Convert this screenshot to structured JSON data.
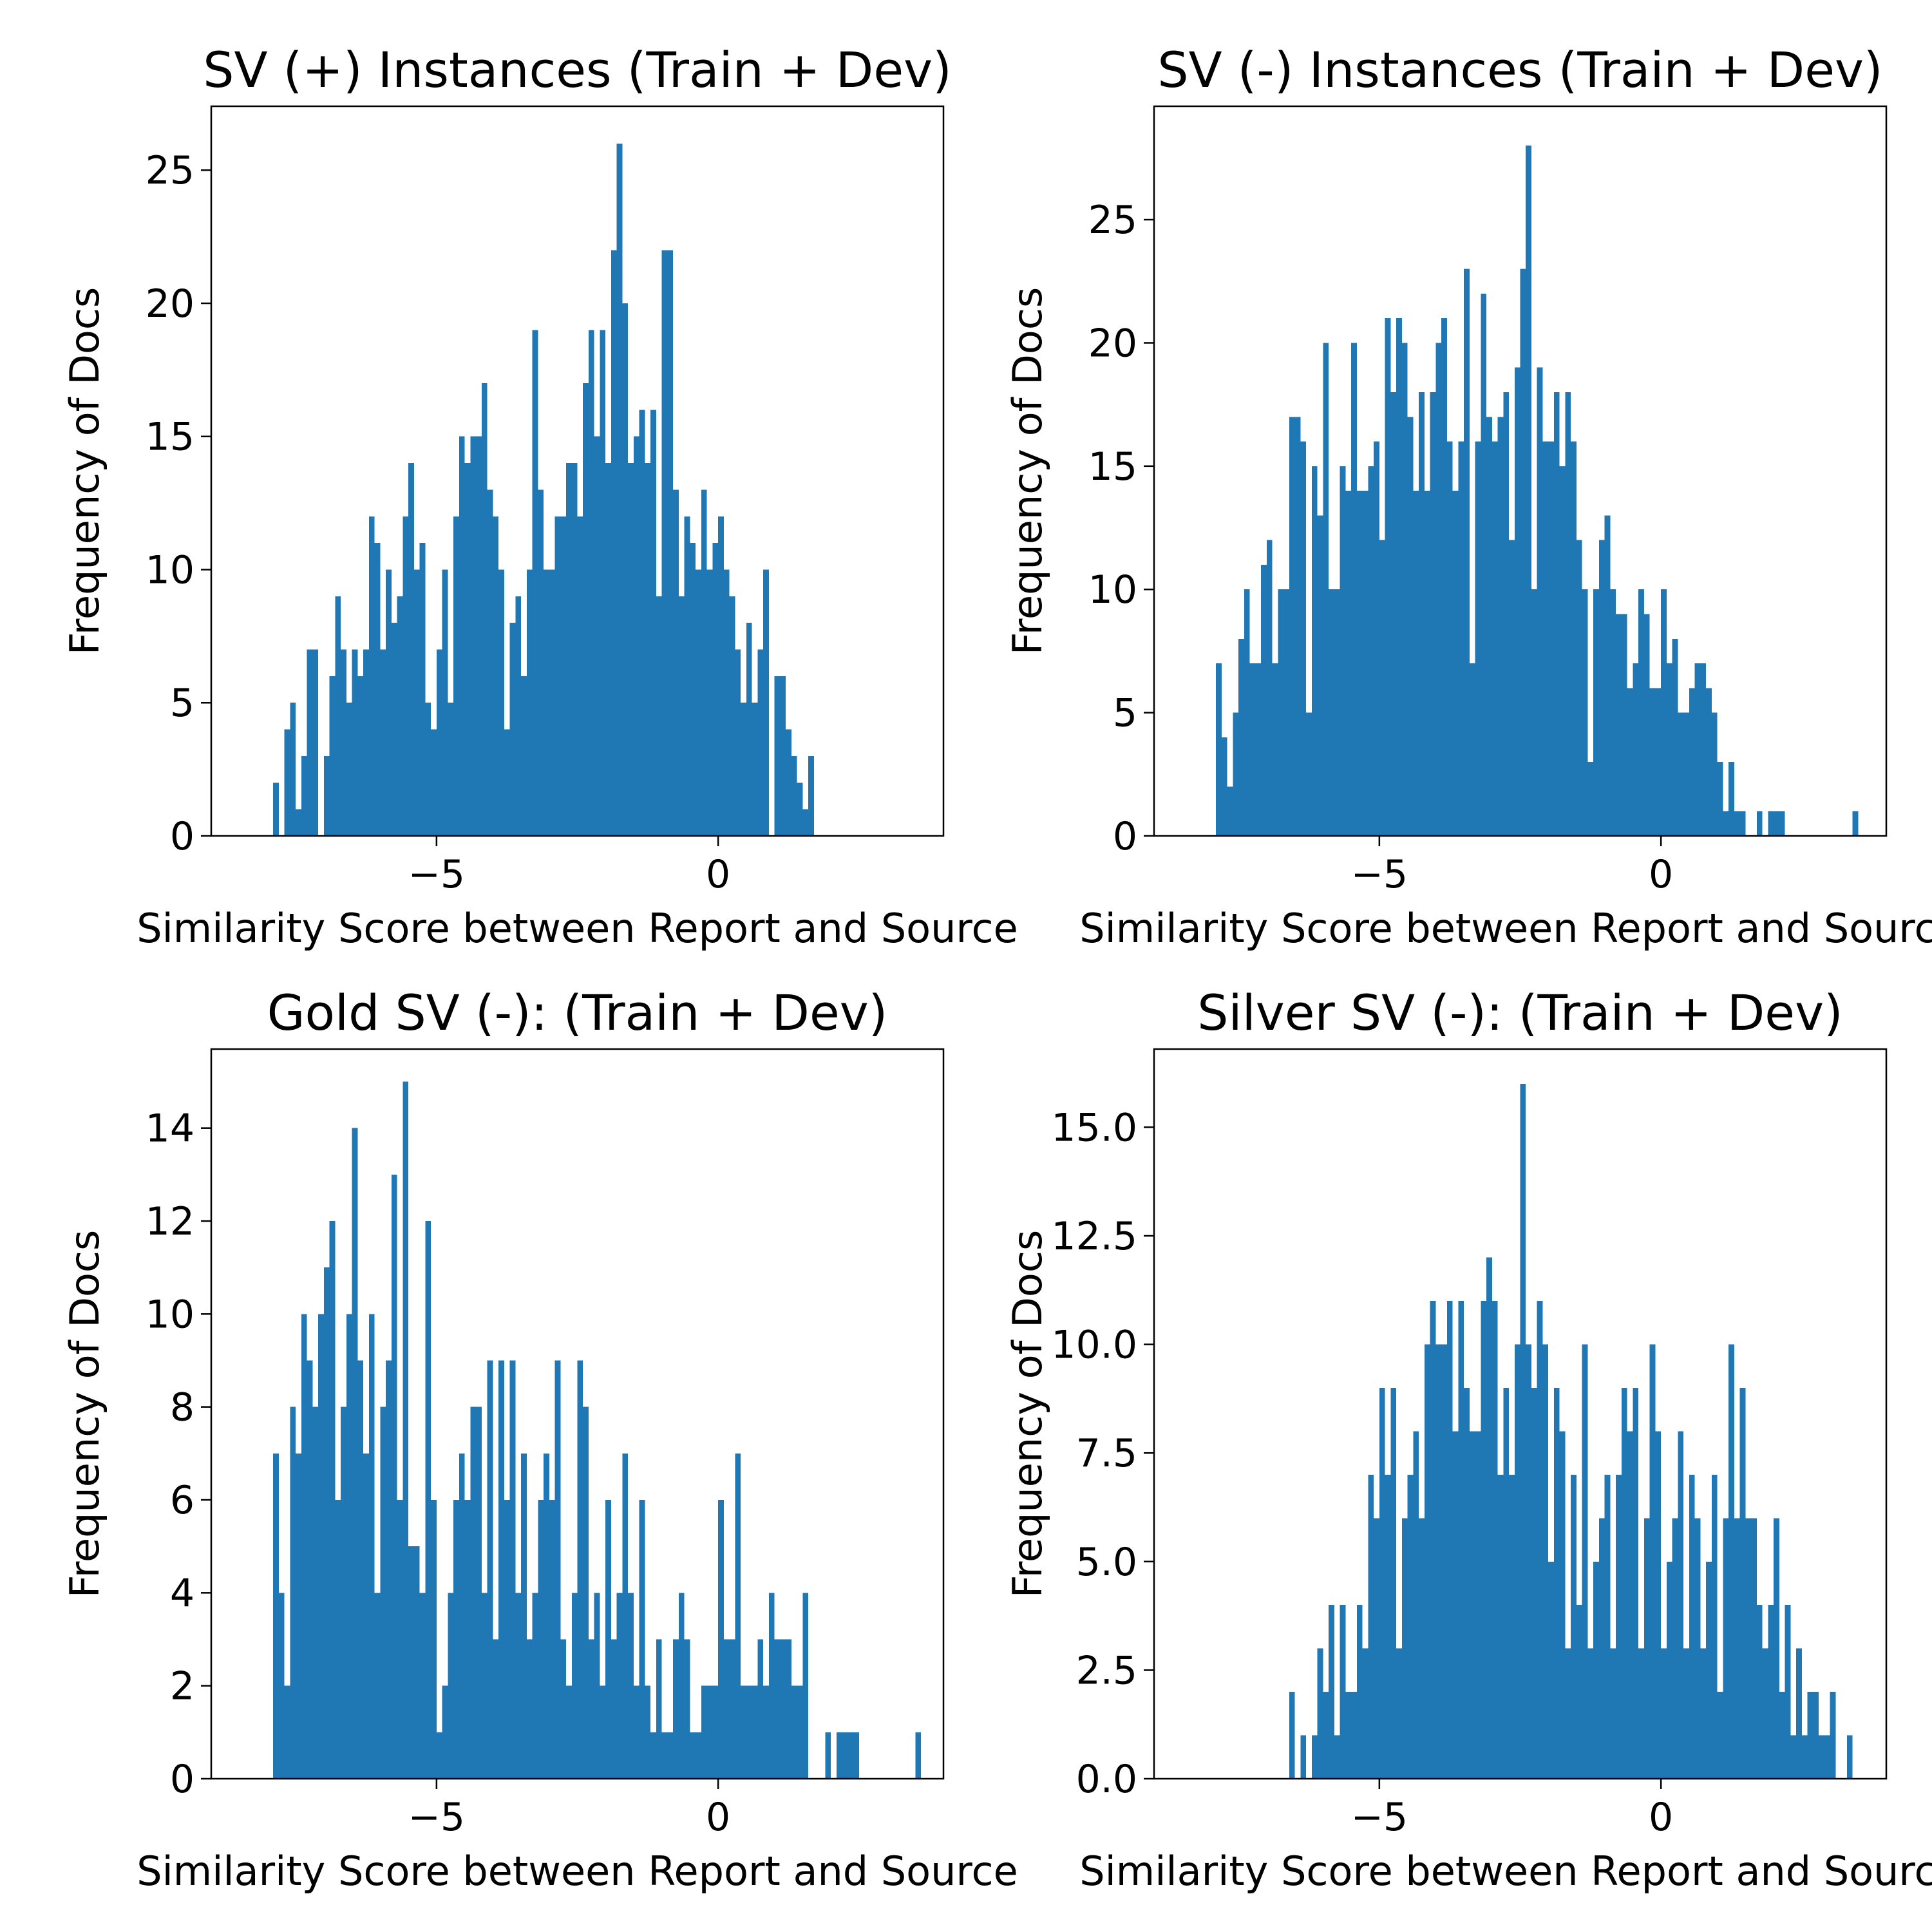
{
  "figure": {
    "bar_color": "#1f77b4",
    "axis_color": "#000000",
    "background": "#ffffff"
  },
  "chart_data": [
    {
      "type": "bar",
      "title": "SV (+) Instances (Train + Dev)",
      "xlabel": "Similarity Score between Report and Source",
      "ylabel": "Frequency of Docs",
      "xlim": [
        -9.0,
        4.0
      ],
      "ylim": [
        0,
        27.4
      ],
      "xticks": [
        -5,
        0
      ],
      "yticks": [
        0,
        5,
        10,
        15,
        20,
        25
      ],
      "ytick_labels": [
        "0",
        "5",
        "10",
        "15",
        "20",
        "25"
      ],
      "bin_start": -7.9,
      "bin_width": 0.1,
      "values": [
        2,
        0,
        4,
        5,
        1,
        3,
        7,
        7,
        0,
        3,
        6,
        9,
        7,
        5,
        7,
        6,
        7,
        12,
        11,
        7,
        10,
        8,
        9,
        12,
        14,
        10,
        11,
        5,
        4,
        7,
        10,
        5,
        12,
        15,
        14,
        15,
        15,
        17,
        13,
        12,
        10,
        4,
        8,
        9,
        6,
        10,
        19,
        13,
        10,
        10,
        12,
        12,
        14,
        14,
        12,
        17,
        19,
        15,
        19,
        14,
        22,
        26,
        20,
        14,
        15,
        16,
        14,
        16,
        9,
        22,
        22,
        13,
        9,
        12,
        11,
        10,
        13,
        10,
        11,
        12,
        10,
        9,
        7,
        5,
        8,
        5,
        7,
        10,
        0,
        6,
        6,
        4,
        3,
        2,
        1,
        3
      ]
    },
    {
      "type": "bar",
      "title": "SV (-) Instances (Train + Dev)",
      "xlabel": "Similarity Score between Report and Source",
      "ylabel": "Frequency of Docs",
      "xlim": [
        -9.0,
        4.0
      ],
      "ylim": [
        0,
        29.6
      ],
      "xticks": [
        -5,
        0
      ],
      "yticks": [
        0,
        5,
        10,
        15,
        20,
        25
      ],
      "ytick_labels": [
        "0",
        "5",
        "10",
        "15",
        "20",
        "25"
      ],
      "bin_start": -7.9,
      "bin_width": 0.1,
      "values": [
        7,
        4,
        2,
        5,
        8,
        10,
        7,
        7,
        11,
        12,
        7,
        10,
        10,
        17,
        17,
        16,
        5,
        15,
        13,
        20,
        10,
        10,
        15,
        14,
        20,
        14,
        14,
        15,
        16,
        12,
        21,
        18,
        21,
        20,
        17,
        14,
        18,
        14,
        18,
        20,
        21,
        16,
        14,
        16,
        23,
        7,
        16,
        22,
        17,
        16,
        17,
        18,
        12,
        19,
        23,
        28,
        10,
        19,
        16,
        16,
        18,
        15,
        18,
        16,
        12,
        10,
        3,
        10,
        12,
        13,
        10,
        9,
        9,
        6,
        7,
        10,
        9,
        6,
        6,
        10,
        7,
        8,
        5,
        5,
        6,
        7,
        7,
        6,
        5,
        3,
        1,
        3,
        1,
        1,
        0,
        0,
        1,
        0,
        1,
        1,
        1,
        0,
        0,
        0,
        0,
        0,
        0,
        0,
        0,
        0,
        0,
        0,
        0,
        1
      ]
    },
    {
      "type": "bar",
      "title": "Gold SV (-): (Train + Dev)",
      "xlabel": "Similarity Score between Report and Source",
      "ylabel": "Frequency of Docs",
      "xlim": [
        -9.0,
        4.0
      ],
      "ylim": [
        0,
        15.7
      ],
      "xticks": [
        -5,
        0
      ],
      "yticks": [
        0,
        2,
        4,
        6,
        8,
        10,
        12,
        14
      ],
      "ytick_labels": [
        "0",
        "2",
        "4",
        "6",
        "8",
        "10",
        "12",
        "14"
      ],
      "bin_start": -7.9,
      "bin_width": 0.1,
      "values": [
        7,
        4,
        2,
        8,
        7,
        10,
        9,
        8,
        10,
        11,
        12,
        6,
        8,
        10,
        14,
        9,
        7,
        10,
        4,
        8,
        9,
        13,
        6,
        15,
        5,
        5,
        4,
        12,
        6,
        1,
        2,
        4,
        6,
        7,
        6,
        8,
        8,
        4,
        9,
        3,
        9,
        6,
        9,
        4,
        7,
        3,
        4,
        6,
        7,
        6,
        9,
        3,
        2,
        4,
        9,
        8,
        3,
        4,
        2,
        6,
        3,
        4,
        7,
        4,
        2,
        6,
        2,
        1,
        3,
        1,
        1,
        3,
        4,
        3,
        1,
        1,
        2,
        2,
        2,
        6,
        3,
        3,
        7,
        2,
        2,
        2,
        3,
        2,
        4,
        3,
        3,
        3,
        2,
        2,
        4,
        0,
        0,
        0,
        1,
        0,
        1,
        1,
        1,
        1,
        0,
        0,
        0,
        0,
        0,
        0,
        0,
        0,
        0,
        0,
        1
      ]
    },
    {
      "type": "bar",
      "title": "Silver SV (-): (Train + Dev)",
      "xlabel": "Similarity Score between Report and Source",
      "ylabel": "Frequency of Docs",
      "xlim": [
        -9.0,
        4.0
      ],
      "ylim": [
        0,
        16.8
      ],
      "xticks": [
        -5,
        0
      ],
      "yticks": [
        0,
        2.5,
        5,
        7.5,
        10,
        12.5,
        15
      ],
      "ytick_labels": [
        "0.0",
        "2.5",
        "5.0",
        "7.5",
        "10.0",
        "12.5",
        "15.0"
      ],
      "bin_start": -6.6,
      "bin_width": 0.1,
      "values": [
        2,
        0,
        1,
        0,
        1,
        3,
        2,
        4,
        1,
        4,
        2,
        2,
        4,
        3,
        7,
        6,
        9,
        7,
        9,
        3,
        6,
        7,
        8,
        6,
        10,
        11,
        10,
        10,
        11,
        8,
        11,
        9,
        8,
        8,
        11,
        12,
        11,
        7,
        9,
        7,
        10,
        16,
        10,
        9,
        11,
        10,
        5,
        9,
        8,
        3,
        7,
        4,
        10,
        3,
        5,
        6,
        7,
        3,
        7,
        9,
        8,
        9,
        3,
        6,
        10,
        8,
        3,
        5,
        6,
        8,
        3,
        7,
        6,
        3,
        5,
        7,
        2,
        6,
        10,
        6,
        9,
        6,
        6,
        4,
        3,
        4,
        6,
        2,
        4,
        1,
        3,
        1,
        2,
        2,
        1,
        1,
        2,
        0,
        0,
        1
      ]
    }
  ]
}
